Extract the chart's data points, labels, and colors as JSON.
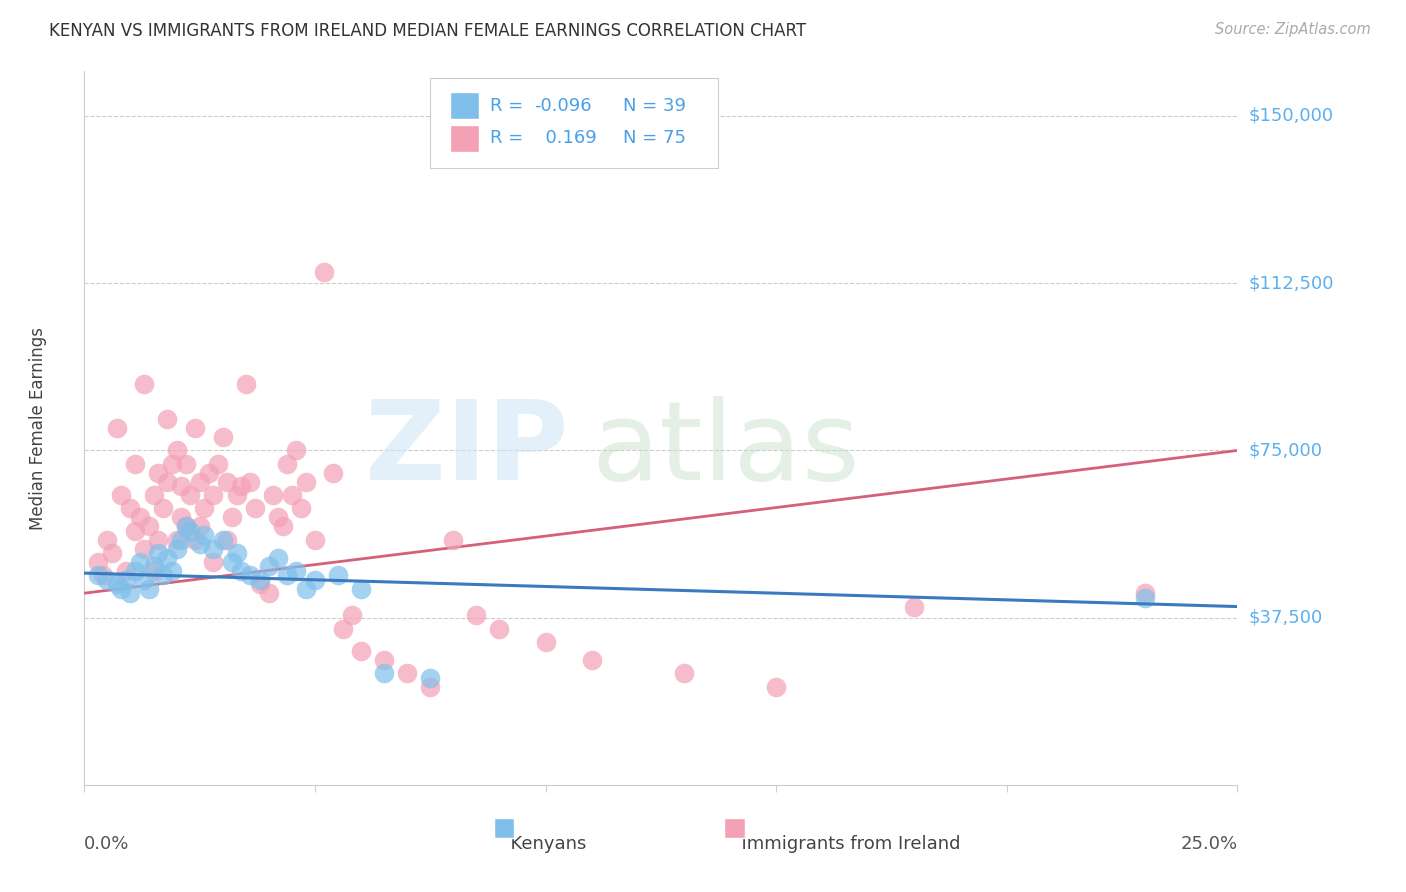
{
  "title": "KENYAN VS IMMIGRANTS FROM IRELAND MEDIAN FEMALE EARNINGS CORRELATION CHART",
  "source": "Source: ZipAtlas.com",
  "ylabel": "Median Female Earnings",
  "xlim": [
    0.0,
    0.25
  ],
  "ylim": [
    0,
    160000
  ],
  "ytick_vals": [
    37500,
    75000,
    112500,
    150000
  ],
  "ytick_labels": [
    "$37,500",
    "$75,000",
    "$112,500",
    "$150,000"
  ],
  "legend_r_blue": "-0.096",
  "legend_n_blue": "39",
  "legend_r_pink": "0.169",
  "legend_n_pink": "75",
  "blue_scatter_color": "#7fbfea",
  "pink_scatter_color": "#f4a0b5",
  "blue_line_color": "#3a7bbf",
  "pink_line_color": "#d4607a",
  "label_color": "#5ab0f0",
  "legend_text_color": "#4aa0e8",
  "grid_color": "#cccccc",
  "title_color": "#333333",
  "source_color": "#aaaaaa",
  "blue_x": [
    0.003,
    0.005,
    0.007,
    0.008,
    0.009,
    0.01,
    0.011,
    0.012,
    0.013,
    0.014,
    0.015,
    0.016,
    0.017,
    0.018,
    0.019,
    0.02,
    0.021,
    0.022,
    0.023,
    0.025,
    0.026,
    0.028,
    0.03,
    0.032,
    0.033,
    0.034,
    0.036,
    0.038,
    0.04,
    0.042,
    0.044,
    0.046,
    0.048,
    0.05,
    0.055,
    0.06,
    0.065,
    0.075,
    0.23
  ],
  "blue_y": [
    47000,
    46000,
    45000,
    44000,
    46000,
    43000,
    48000,
    50000,
    46000,
    44000,
    49000,
    52000,
    47000,
    51000,
    48000,
    53000,
    55000,
    58000,
    57000,
    54000,
    56000,
    53000,
    55000,
    50000,
    52000,
    48000,
    47000,
    46000,
    49000,
    51000,
    47000,
    48000,
    44000,
    46000,
    47000,
    44000,
    25000,
    24000,
    42000
  ],
  "pink_x": [
    0.003,
    0.004,
    0.005,
    0.006,
    0.007,
    0.008,
    0.009,
    0.01,
    0.011,
    0.011,
    0.012,
    0.013,
    0.013,
    0.014,
    0.015,
    0.015,
    0.016,
    0.016,
    0.017,
    0.018,
    0.018,
    0.019,
    0.02,
    0.02,
    0.021,
    0.021,
    0.022,
    0.022,
    0.023,
    0.024,
    0.024,
    0.025,
    0.025,
    0.026,
    0.027,
    0.028,
    0.028,
    0.029,
    0.03,
    0.031,
    0.031,
    0.032,
    0.033,
    0.034,
    0.035,
    0.036,
    0.037,
    0.038,
    0.04,
    0.041,
    0.042,
    0.043,
    0.044,
    0.045,
    0.046,
    0.047,
    0.048,
    0.05,
    0.052,
    0.054,
    0.056,
    0.058,
    0.06,
    0.065,
    0.07,
    0.075,
    0.08,
    0.085,
    0.09,
    0.1,
    0.11,
    0.13,
    0.15,
    0.18,
    0.23
  ],
  "pink_y": [
    50000,
    47000,
    55000,
    52000,
    80000,
    65000,
    48000,
    62000,
    57000,
    72000,
    60000,
    53000,
    90000,
    58000,
    65000,
    48000,
    55000,
    70000,
    62000,
    68000,
    82000,
    72000,
    75000,
    55000,
    60000,
    67000,
    58000,
    72000,
    65000,
    80000,
    55000,
    68000,
    58000,
    62000,
    70000,
    65000,
    50000,
    72000,
    78000,
    68000,
    55000,
    60000,
    65000,
    67000,
    90000,
    68000,
    62000,
    45000,
    43000,
    65000,
    60000,
    58000,
    72000,
    65000,
    75000,
    62000,
    68000,
    55000,
    115000,
    70000,
    35000,
    38000,
    30000,
    28000,
    25000,
    22000,
    55000,
    38000,
    35000,
    32000,
    28000,
    25000,
    22000,
    40000,
    43000
  ],
  "blue_line_x0": 0.0,
  "blue_line_y0": 47500,
  "blue_line_x1": 0.25,
  "blue_line_y1": 40000,
  "pink_line_x0": 0.0,
  "pink_line_y0": 43000,
  "pink_line_x1": 0.25,
  "pink_line_y1": 75000
}
